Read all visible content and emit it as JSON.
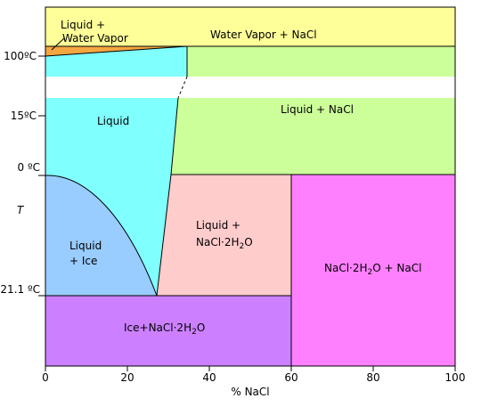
{
  "diagram": {
    "regions": {
      "water_vapor_nacl": {
        "label": "Water Vapor + NaCl",
        "color": "#ffff99"
      },
      "liquid_water_vapor": {
        "label_line1": "Liquid +",
        "label_line2": "Water Vapor",
        "color": "#f4a641"
      },
      "liquid": {
        "label": "Liquid",
        "color": "#80ffff"
      },
      "liquid_nacl": {
        "label": "Liquid + NaCl",
        "color": "#ccff99"
      },
      "liquid_ice": {
        "label_line1": "Liquid",
        "label_line2": "+ Ice",
        "color": "#99ccff"
      },
      "liquid_dihydrate": {
        "label_line1": "Liquid +",
        "label_line2_a": "NaCl·2H",
        "label_line2_sub": "2",
        "label_line2_b": "O",
        "color": "#ffcccc"
      },
      "dihydrate_nacl": {
        "label_a": "NaCl·2H",
        "label_sub": "2",
        "label_b": "O + NaCl",
        "color": "#ff80ff"
      },
      "ice_dihydrate": {
        "label_a": "Ice+NaCl·2H",
        "label_sub": "2",
        "label_b": "O",
        "color": "#cc80ff"
      }
    },
    "y_axis": {
      "symbol": "T",
      "ticks": [
        {
          "label": "100ºC",
          "value": 100
        },
        {
          "label": "15ºC",
          "value": 15
        },
        {
          "label": "0 ºC",
          "value": 0
        },
        {
          "label": "-21.1 ºC",
          "value": -21.1
        }
      ]
    },
    "x_axis": {
      "label": "% NaCl",
      "ticks": [
        "0",
        "20",
        "40",
        "60",
        "80",
        "100"
      ]
    }
  }
}
